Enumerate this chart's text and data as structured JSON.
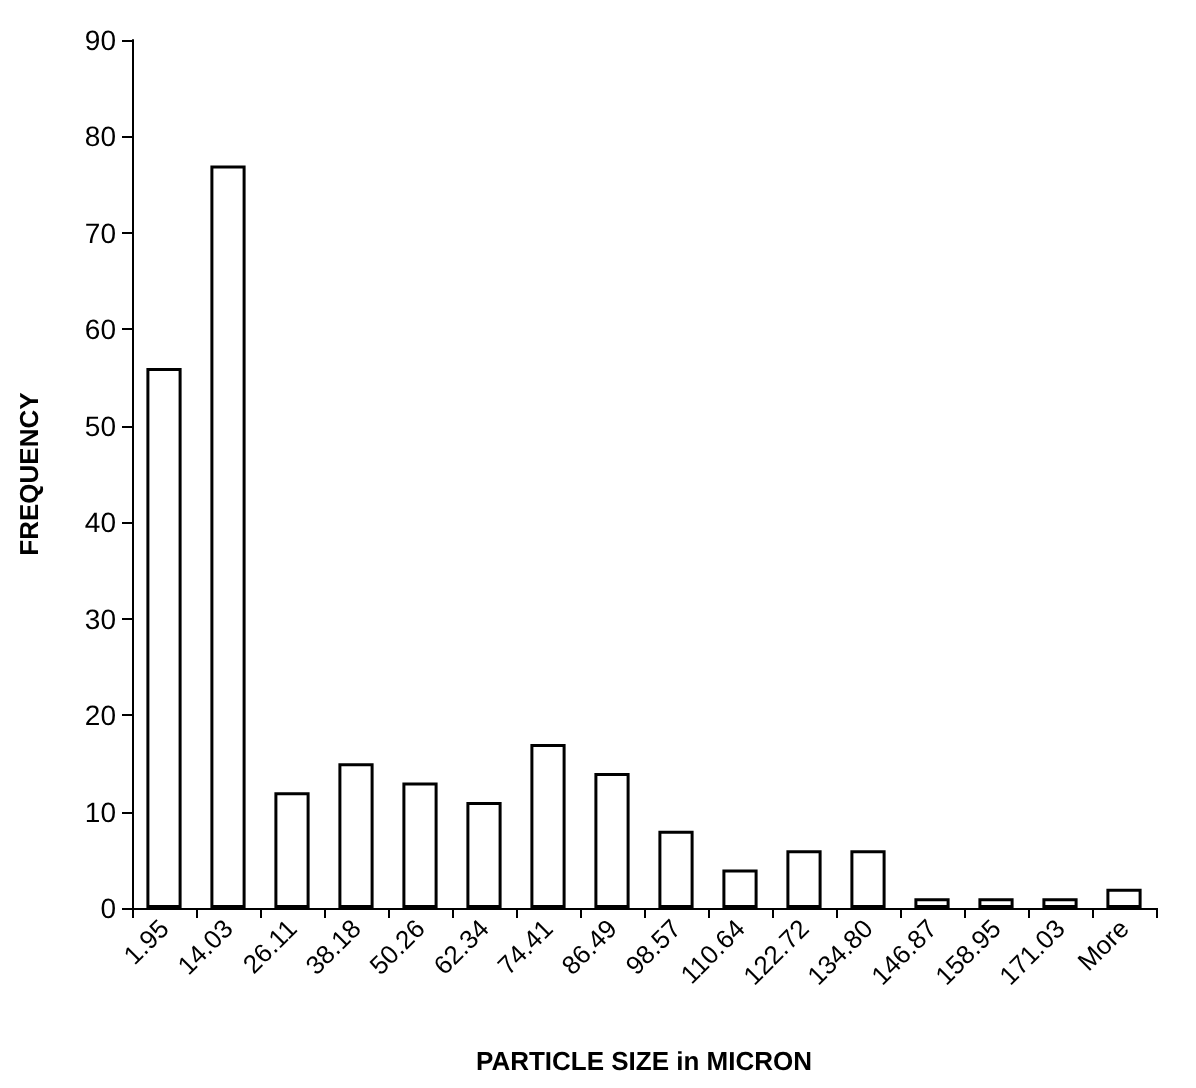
{
  "chart_data": {
    "type": "bar",
    "xlabel": "PARTICLE SIZE in MICRON",
    "ylabel": "FREQUENCY",
    "categories": [
      "1.95",
      "14.03",
      "26.11",
      "38.18",
      "50.26",
      "62.34",
      "74.41",
      "86.49",
      "98.57",
      "110.64",
      "122.72",
      "134.80",
      "146.87",
      "158.95",
      "171.03",
      "More"
    ],
    "values": [
      56,
      77,
      12,
      15,
      13,
      11,
      17,
      14,
      8,
      4,
      6,
      6,
      1,
      1,
      1,
      2
    ],
    "color": "#ffffff",
    "ylim": [
      0,
      90
    ],
    "yticks": [
      0,
      10,
      20,
      30,
      40,
      50,
      60,
      70,
      80,
      90
    ],
    "grid": false
  }
}
